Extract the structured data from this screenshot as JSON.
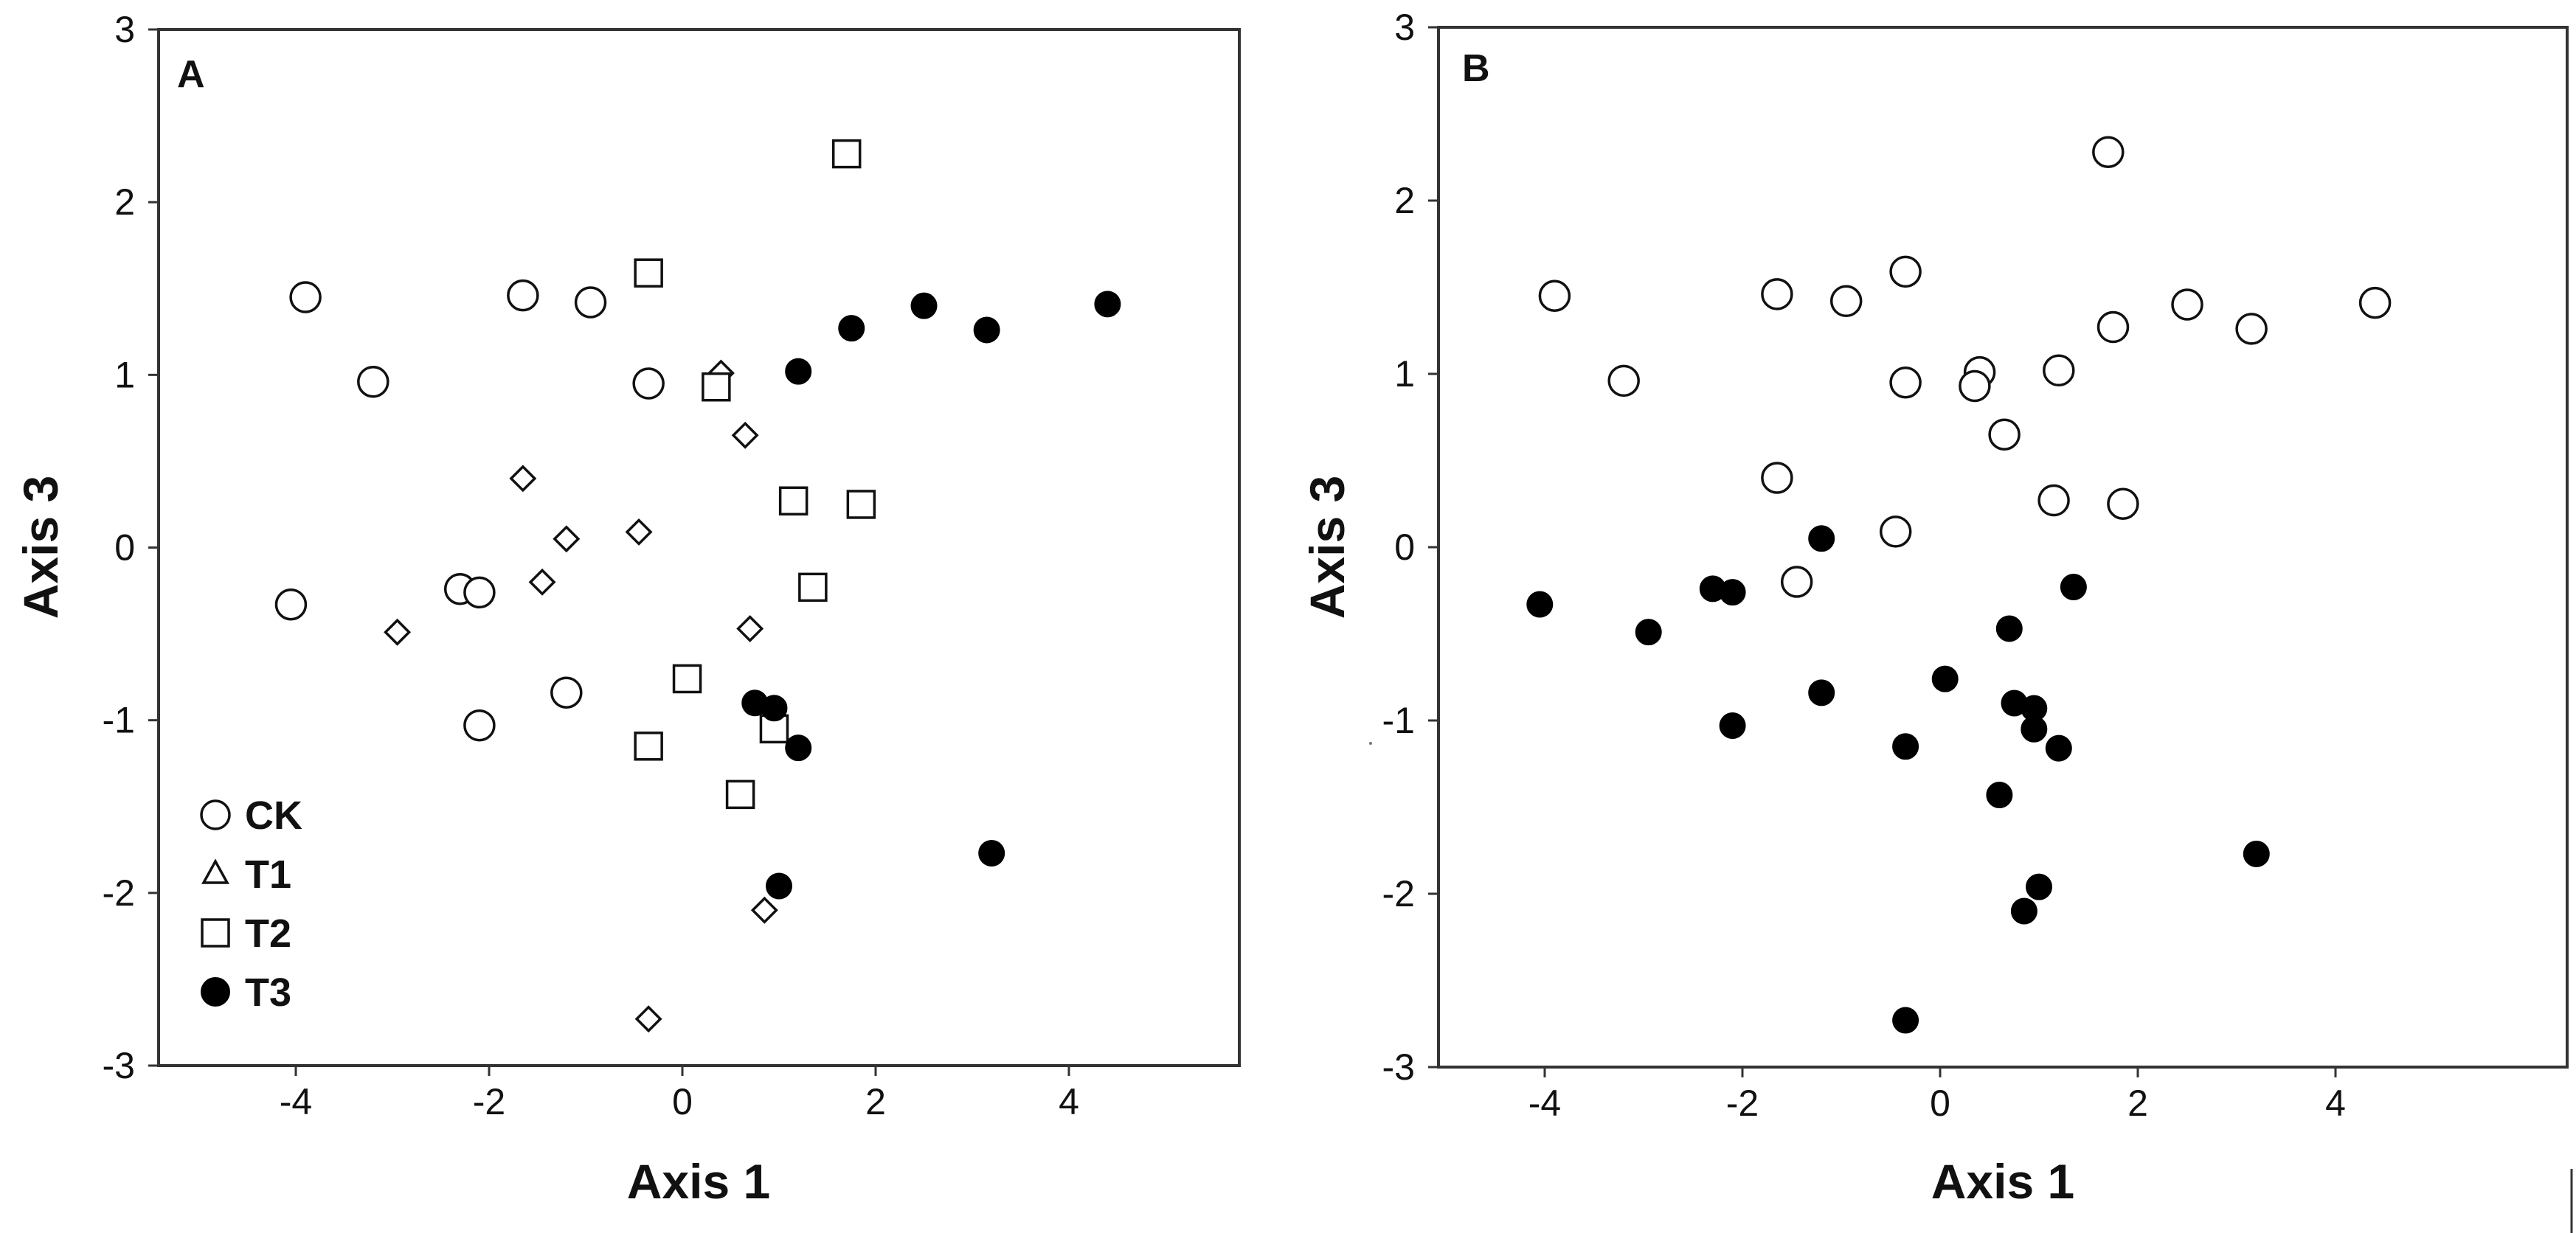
{
  "colors": {
    "axis": "#333333",
    "marker_stroke": "#111111",
    "filled": "#000000",
    "open": "#ffffff"
  },
  "chart_data": [
    {
      "type": "scatter",
      "panel_label": "A",
      "title": "",
      "xlabel": "Axis 1",
      "ylabel": "Axis 3",
      "xlim": [
        -5,
        5
      ],
      "ylim": [
        -3,
        3
      ],
      "xticks": [
        -4,
        -2,
        0,
        2,
        4
      ],
      "yticks": [
        -3,
        -2,
        -1,
        0,
        1,
        2,
        3
      ],
      "grid": false,
      "legend_position": "bottom-left",
      "series": [
        {
          "name": "CK",
          "marker": "circle-open",
          "points": [
            [
              -3.9,
              1.45
            ],
            [
              -3.2,
              0.96
            ],
            [
              -1.65,
              1.46
            ],
            [
              -0.95,
              1.42
            ],
            [
              -0.35,
              0.95
            ],
            [
              -4.05,
              -0.33
            ],
            [
              -2.3,
              -0.24
            ],
            [
              -2.1,
              -0.26
            ],
            [
              -2.1,
              -1.03
            ],
            [
              -1.2,
              -0.84
            ]
          ]
        },
        {
          "name": "T1",
          "marker": "diamond-open",
          "points": [
            [
              0.4,
              1.01
            ],
            [
              0.65,
              0.65
            ],
            [
              -1.65,
              0.4
            ],
            [
              -1.2,
              0.05
            ],
            [
              -0.45,
              0.09
            ],
            [
              -1.45,
              -0.2
            ],
            [
              -2.95,
              -0.49
            ],
            [
              0.7,
              -0.47
            ],
            [
              0.85,
              -2.1
            ],
            [
              -0.35,
              -2.73
            ]
          ]
        },
        {
          "name": "T2",
          "marker": "square-open",
          "points": [
            [
              1.7,
              2.28
            ],
            [
              -0.35,
              1.59
            ],
            [
              0.35,
              0.93
            ],
            [
              1.15,
              0.27
            ],
            [
              1.85,
              0.25
            ],
            [
              1.35,
              -0.23
            ],
            [
              0.05,
              -0.76
            ],
            [
              -0.35,
              -1.15
            ],
            [
              0.95,
              -1.05
            ],
            [
              0.6,
              -1.43
            ]
          ]
        },
        {
          "name": "T3",
          "marker": "circle-filled",
          "points": [
            [
              4.4,
              1.41
            ],
            [
              2.5,
              1.4
            ],
            [
              3.15,
              1.26
            ],
            [
              1.75,
              1.27
            ],
            [
              1.2,
              1.02
            ],
            [
              0.75,
              -0.9
            ],
            [
              0.95,
              -0.93
            ],
            [
              1.2,
              -1.16
            ],
            [
              1.0,
              -1.96
            ],
            [
              3.2,
              -1.77
            ]
          ]
        }
      ]
    },
    {
      "type": "scatter",
      "panel_label": "B",
      "title": "",
      "xlabel": "Axis 1",
      "ylabel": "Axis 3",
      "xlim": [
        -5,
        5
      ],
      "ylim": [
        -3,
        3
      ],
      "xticks": [
        -4,
        -2,
        0,
        2,
        4
      ],
      "yticks": [
        -3,
        -2,
        -1,
        0,
        1,
        2,
        3
      ],
      "grid": false,
      "legend_position": "none",
      "series": [
        {
          "name": "",
          "marker": "circle-open",
          "points": [
            [
              1.7,
              2.28
            ],
            [
              -3.9,
              1.45
            ],
            [
              -1.65,
              1.46
            ],
            [
              -0.95,
              1.42
            ],
            [
              -0.35,
              1.59
            ],
            [
              2.5,
              1.4
            ],
            [
              4.4,
              1.41
            ],
            [
              1.75,
              1.27
            ],
            [
              3.15,
              1.26
            ],
            [
              -3.2,
              0.96
            ],
            [
              0.4,
              1.01
            ],
            [
              1.2,
              1.02
            ],
            [
              -0.35,
              0.95
            ],
            [
              0.35,
              0.93
            ],
            [
              0.65,
              0.65
            ],
            [
              -1.65,
              0.4
            ],
            [
              1.15,
              0.27
            ],
            [
              1.85,
              0.25
            ],
            [
              -0.45,
              0.09
            ],
            [
              -1.45,
              -0.2
            ]
          ]
        },
        {
          "name": "",
          "marker": "circle-filled",
          "points": [
            [
              -4.05,
              -0.33
            ],
            [
              -2.95,
              -0.49
            ],
            [
              -2.3,
              -0.24
            ],
            [
              -2.1,
              -0.26
            ],
            [
              -1.2,
              0.05
            ],
            [
              1.35,
              -0.23
            ],
            [
              0.7,
              -0.47
            ],
            [
              0.05,
              -0.76
            ],
            [
              -2.1,
              -1.03
            ],
            [
              -1.2,
              -0.84
            ],
            [
              0.75,
              -0.9
            ],
            [
              0.95,
              -0.93
            ],
            [
              0.95,
              -1.05
            ],
            [
              1.2,
              -1.16
            ],
            [
              -0.35,
              -1.15
            ],
            [
              0.6,
              -1.43
            ],
            [
              1.0,
              -1.96
            ],
            [
              0.85,
              -2.1
            ],
            [
              3.2,
              -1.77
            ],
            [
              -0.35,
              -2.73
            ]
          ]
        }
      ]
    }
  ]
}
